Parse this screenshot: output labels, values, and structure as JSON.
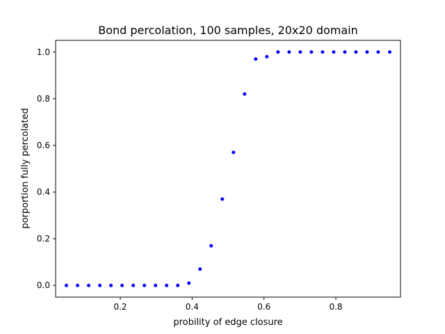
{
  "chart_data": {
    "type": "scatter",
    "title": "Bond percolation, 100 samples, 20x20 domain",
    "xlabel": "probility of edge closure",
    "ylabel": "porportion fully percolated",
    "xlim": [
      0.02,
      0.98
    ],
    "ylim": [
      -0.05,
      1.05
    ],
    "xticks": [
      0.2,
      0.4,
      0.6,
      0.8
    ],
    "yticks": [
      0.0,
      0.2,
      0.4,
      0.6,
      0.8,
      1.0
    ],
    "xtick_labels": [
      "0.2",
      "0.4",
      "0.6",
      "0.8"
    ],
    "ytick_labels": [
      "0.0",
      "0.2",
      "0.4",
      "0.6",
      "0.8",
      "1.0"
    ],
    "grid": false,
    "marker_color": "#0000ff",
    "series": [
      {
        "x": [
          0.05,
          0.081,
          0.112,
          0.143,
          0.174,
          0.205,
          0.236,
          0.267,
          0.298,
          0.329,
          0.36,
          0.391,
          0.422,
          0.453,
          0.484,
          0.515,
          0.546,
          0.577,
          0.608,
          0.639,
          0.67,
          0.701,
          0.732,
          0.763,
          0.794,
          0.825,
          0.856,
          0.887,
          0.918,
          0.95
        ],
        "y": [
          0,
          0,
          0,
          0,
          0,
          0,
          0,
          0,
          0,
          0,
          0,
          0.01,
          0.07,
          0.17,
          0.37,
          0.57,
          0.82,
          0.97,
          0.98,
          1,
          1,
          1,
          1,
          1,
          1,
          1,
          1,
          1,
          1,
          1
        ]
      }
    ]
  }
}
